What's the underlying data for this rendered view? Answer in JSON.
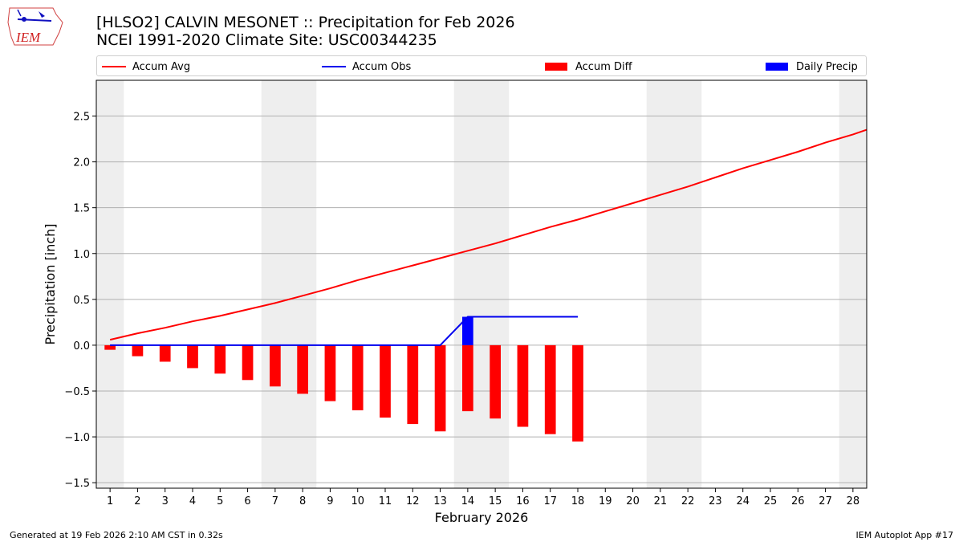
{
  "header": {
    "title_line1": "[HLSO2] CALVIN MESONET :: Precipitation for Feb 2026",
    "title_line2": "NCEI 1991-2020 Climate Site: USC00344235"
  },
  "logo": {
    "text": "IEM"
  },
  "footer": {
    "left": "Generated at 19 Feb 2026 2:10 AM CST in 0.32s",
    "right": "IEM Autoplot App #17"
  },
  "colors": {
    "avg": "#ff0000",
    "obs": "#0000ee",
    "diff": "#ff0000",
    "daily": "#0000ff",
    "weekend_shade": "#eeeeee",
    "grid": "#b0b0b0"
  },
  "chart_data": {
    "type": "bar",
    "title": "[HLSO2] CALVIN MESONET :: Precipitation for Feb 2026",
    "subtitle": "NCEI 1991-2020 Climate Site: USC00344235",
    "xlabel": "February 2026",
    "ylabel": "Precipitation [inch]",
    "xlim": [
      0.5,
      28.5
    ],
    "ylim": [
      -1.56,
      2.89
    ],
    "yticks": [
      -1.5,
      -1.0,
      -0.5,
      0.0,
      0.5,
      1.0,
      1.5,
      2.0,
      2.5
    ],
    "ytick_labels": [
      "−1.5",
      "−1.0",
      "−0.5",
      "0.0",
      "0.5",
      "1.0",
      "1.5",
      "2.0",
      "2.5"
    ],
    "x": [
      1,
      2,
      3,
      4,
      5,
      6,
      7,
      8,
      9,
      10,
      11,
      12,
      13,
      14,
      15,
      16,
      17,
      18,
      19,
      20,
      21,
      22,
      23,
      24,
      25,
      26,
      27,
      28
    ],
    "weekend_ranges": [
      [
        0.5,
        1.5
      ],
      [
        6.5,
        8.5
      ],
      [
        13.5,
        15.5
      ],
      [
        20.5,
        22.5
      ],
      [
        27.5,
        28.5
      ]
    ],
    "grid": true,
    "legend_position": "top",
    "series": [
      {
        "name": "Accum Avg",
        "kind": "line",
        "x": [
          1,
          2,
          3,
          4,
          5,
          6,
          7,
          8,
          9,
          10,
          11,
          12,
          13,
          14,
          15,
          16,
          17,
          18,
          19,
          20,
          21,
          22,
          23,
          24,
          25,
          26,
          27,
          28,
          28.5
        ],
        "values": [
          0.06,
          0.13,
          0.19,
          0.26,
          0.32,
          0.39,
          0.46,
          0.54,
          0.62,
          0.71,
          0.79,
          0.87,
          0.95,
          1.03,
          1.11,
          1.2,
          1.29,
          1.37,
          1.46,
          1.55,
          1.64,
          1.73,
          1.83,
          1.93,
          2.02,
          2.11,
          2.21,
          2.3,
          2.35
        ]
      },
      {
        "name": "Accum Obs",
        "kind": "line",
        "x": [
          1,
          2,
          3,
          4,
          5,
          6,
          7,
          8,
          9,
          10,
          11,
          12,
          13,
          14,
          15,
          16,
          17,
          18
        ],
        "values": [
          0,
          0,
          0,
          0,
          0,
          0,
          0,
          0,
          0,
          0,
          0,
          0,
          0,
          0.31,
          0.31,
          0.31,
          0.31,
          0.31
        ]
      },
      {
        "name": "Accum Diff",
        "kind": "bar",
        "x": [
          1,
          2,
          3,
          4,
          5,
          6,
          7,
          8,
          9,
          10,
          11,
          12,
          13,
          14,
          15,
          16,
          17,
          18
        ],
        "values": [
          -0.05,
          -0.12,
          -0.18,
          -0.25,
          -0.31,
          -0.38,
          -0.45,
          -0.53,
          -0.61,
          -0.71,
          -0.79,
          -0.86,
          -0.94,
          -0.72,
          -0.8,
          -0.89,
          -0.97,
          -1.05
        ]
      },
      {
        "name": "Daily Precip",
        "kind": "bar",
        "x": [
          14
        ],
        "values": [
          0.31
        ]
      }
    ]
  }
}
